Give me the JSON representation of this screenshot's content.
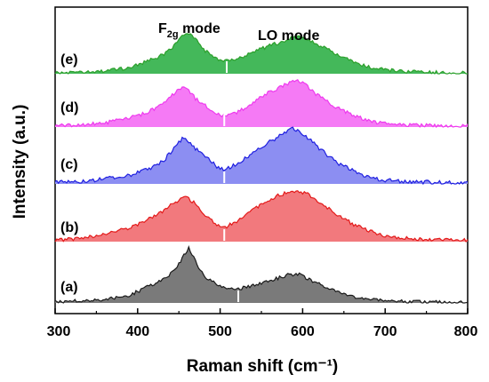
{
  "chart_data": {
    "type": "area",
    "title": "",
    "xlabel": "Raman shift",
    "xlabel_unit": "(cm⁻¹)",
    "ylabel": "Intensity (a.u.)",
    "xlim": [
      300,
      800
    ],
    "x_ticks": [
      300,
      400,
      500,
      600,
      700,
      800
    ],
    "x_tick_labels": [
      "300",
      "400",
      "500",
      "600",
      "700",
      "800"
    ],
    "grid": false,
    "annotations": [
      {
        "text_main": "F",
        "text_sub": "2g",
        "text_rest": " mode",
        "x": 460
      },
      {
        "text": "LO mode",
        "x": 585
      }
    ],
    "series": [
      {
        "name": "(e)",
        "color": "#2ca02c",
        "fill": "#44b85a",
        "marker_x": 508,
        "x": [
          300,
          330,
          360,
          390,
          410,
          430,
          445,
          455,
          460,
          470,
          480,
          495,
          510,
          525,
          540,
          555,
          570,
          585,
          595,
          605,
          620,
          640,
          660,
          680,
          700,
          730,
          760,
          800
        ],
        "y": [
          0.2,
          0.3,
          0.6,
          1.5,
          3.0,
          4.5,
          7.0,
          9.5,
          10.0,
          8.5,
          6.0,
          3.5,
          3.0,
          4.0,
          5.5,
          6.5,
          7.5,
          8.6,
          9.0,
          8.5,
          7.0,
          4.8,
          3.0,
          1.6,
          0.9,
          0.5,
          0.3,
          0.2
        ]
      },
      {
        "name": "(d)",
        "color": "#ee3aee",
        "fill": "#f57af5",
        "marker_x": 505,
        "x": [
          300,
          330,
          360,
          390,
          410,
          430,
          445,
          455,
          460,
          470,
          480,
          495,
          505,
          520,
          540,
          555,
          570,
          585,
          595,
          605,
          620,
          640,
          660,
          680,
          700,
          730,
          760,
          800
        ],
        "y": [
          0.3,
          0.5,
          1.0,
          2.2,
          3.4,
          5.5,
          8.3,
          10.0,
          9.5,
          7.0,
          5.5,
          3.5,
          2.5,
          3.5,
          6.0,
          8.0,
          9.5,
          11.0,
          11.5,
          10.0,
          7.5,
          5.0,
          3.0,
          1.5,
          0.8,
          0.5,
          0.3,
          0.3
        ]
      },
      {
        "name": "(c)",
        "color": "#1f1fe0",
        "fill": "#8c8ef2",
        "marker_x": 505,
        "x": [
          300,
          330,
          360,
          390,
          410,
          430,
          445,
          455,
          460,
          470,
          480,
          495,
          505,
          520,
          540,
          555,
          570,
          585,
          595,
          605,
          620,
          640,
          660,
          680,
          700,
          730,
          760,
          800
        ],
        "y": [
          0.3,
          0.6,
          1.1,
          2.0,
          3.1,
          5.0,
          8.0,
          10.5,
          10.0,
          8.0,
          6.5,
          4.0,
          3.0,
          4.5,
          7.0,
          9.0,
          10.5,
          12.5,
          12.0,
          10.5,
          8.0,
          5.0,
          3.0,
          1.6,
          0.8,
          0.5,
          0.3,
          0.2
        ]
      },
      {
        "name": "(b)",
        "color": "#e31a1a",
        "fill": "#f2797d",
        "marker_x": 505,
        "x": [
          300,
          330,
          360,
          390,
          410,
          430,
          445,
          455,
          460,
          470,
          480,
          495,
          505,
          520,
          540,
          555,
          570,
          585,
          595,
          605,
          620,
          640,
          660,
          680,
          700,
          730,
          760,
          800
        ],
        "y": [
          0.3,
          0.8,
          1.8,
          3.5,
          5.2,
          7.5,
          9.8,
          11.0,
          11.0,
          9.5,
          7.0,
          4.5,
          3.5,
          5.0,
          8.0,
          10.0,
          11.5,
          12.5,
          12.7,
          12.0,
          10.0,
          7.0,
          4.5,
          2.8,
          1.5,
          0.8,
          0.5,
          0.3
        ]
      },
      {
        "name": "(a)",
        "color": "#1a1a1a",
        "fill": "#7a7a7a",
        "marker_x": 522,
        "x": [
          300,
          330,
          360,
          390,
          410,
          430,
          445,
          455,
          462,
          470,
          480,
          495,
          510,
          525,
          540,
          555,
          570,
          585,
          595,
          605,
          620,
          640,
          660,
          680,
          700,
          730,
          760,
          800
        ],
        "y": [
          0.3,
          0.5,
          1.0,
          2.0,
          4.0,
          6.0,
          8.5,
          12.0,
          14.5,
          11.0,
          7.0,
          5.0,
          3.8,
          3.8,
          4.5,
          5.5,
          6.5,
          7.5,
          7.5,
          6.5,
          5.0,
          3.0,
          1.8,
          1.0,
          0.6,
          0.4,
          0.3,
          0.2
        ]
      }
    ]
  }
}
